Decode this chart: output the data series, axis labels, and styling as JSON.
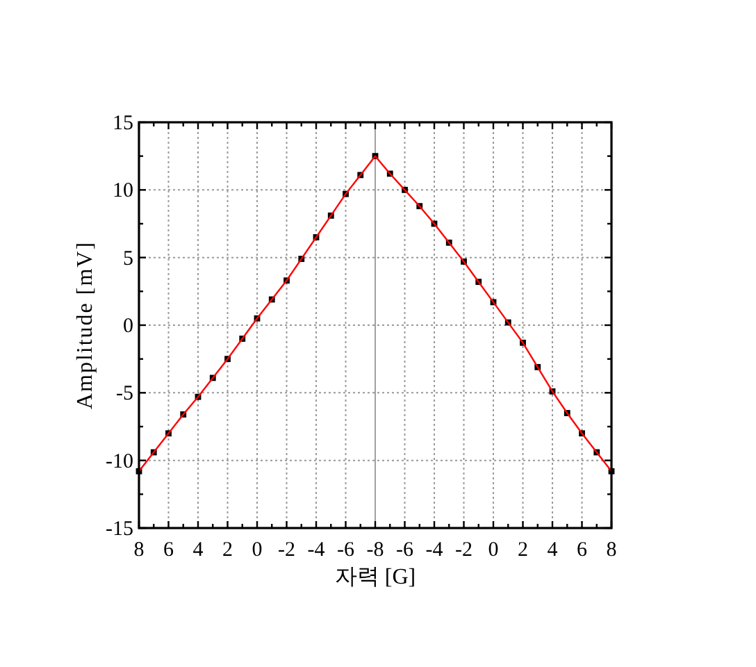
{
  "chart_data": {
    "type": "line",
    "xlabel": "자력 [G]",
    "ylabel": "Amplitude [mV]",
    "categories": [
      "8",
      null,
      "6",
      null,
      "4",
      null,
      "2",
      null,
      "0",
      null,
      "-2",
      null,
      "-4",
      null,
      "-6",
      null,
      "-8",
      null,
      "-6",
      null,
      "-4",
      null,
      "-2",
      null,
      "0",
      null,
      "2",
      null,
      "4",
      null,
      "6",
      null,
      "8"
    ],
    "series": [
      {
        "color": "#ff0000",
        "marker": "none",
        "values": [
          -10.8,
          -9.4,
          -8.0,
          -6.6,
          -5.3,
          -3.9,
          -2.5,
          -1.0,
          0.5,
          1.9,
          3.3,
          4.9,
          6.5,
          8.1,
          9.7,
          11.1,
          12.5,
          11.2,
          10.0,
          8.8,
          7.5,
          6.1,
          4.7,
          3.2,
          1.7,
          0.2,
          -1.3,
          -3.1,
          -4.9,
          -6.5,
          -8.0,
          -9.4,
          -10.8
        ]
      },
      {
        "type": "scatter",
        "color": "#000000",
        "values": [
          -10.8,
          -9.4,
          -8.0,
          -6.6,
          -5.3,
          -3.9,
          -2.5,
          -1.0,
          0.5,
          1.9,
          3.3,
          4.9,
          6.5,
          8.1,
          9.7,
          11.1,
          12.5,
          11.2,
          10.0,
          8.8,
          7.5,
          6.1,
          4.7,
          3.2,
          1.7,
          0.2,
          -1.3,
          -3.1,
          -4.9,
          -6.5,
          -8.0,
          -9.4,
          -10.8
        ]
      }
    ],
    "marker": "square",
    "grid": true,
    "ylim": [
      -15,
      15
    ],
    "yticks": [
      {
        "value": -15,
        "label": "-15"
      },
      {
        "value": -10,
        "label": "-10"
      },
      {
        "value": -5,
        "label": "-5"
      },
      0,
      5,
      10,
      15
    ],
    "ref_lines": [
      {
        "axis": "x",
        "value": "-8",
        "color": "#a0a0a0"
      }
    ]
  }
}
